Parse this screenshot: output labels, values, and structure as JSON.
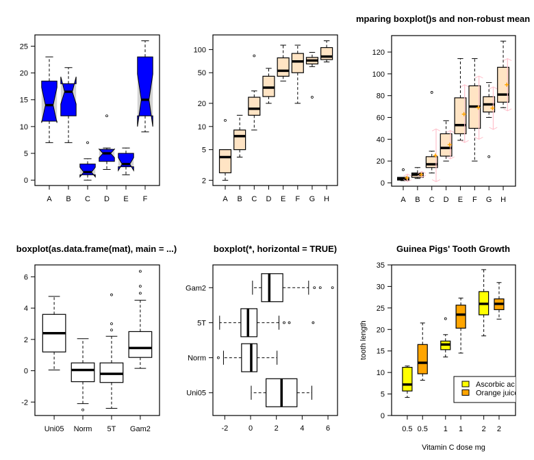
{
  "chart_data": [
    {
      "type": "box",
      "title": "",
      "orientation": "vertical",
      "notch": true,
      "fill": "#0000ff",
      "notch_bg": "#d3d3d3",
      "categories": [
        "A",
        "B",
        "C",
        "D",
        "E",
        "F"
      ],
      "ylim": [
        -1,
        27.1
      ],
      "log": false,
      "yticks": [
        0,
        5,
        10,
        15,
        20,
        25
      ],
      "boxes": [
        {
          "min": 7,
          "q1": 11,
          "med": 14,
          "q3": 18.5,
          "max": 23,
          "notch": [
            10.7,
            17.3
          ],
          "out": []
        },
        {
          "min": 7,
          "q1": 12,
          "med": 16.5,
          "q3": 18,
          "max": 21,
          "notch": [
            14.2,
            19.3
          ],
          "out": []
        },
        {
          "min": 0,
          "q1": 1,
          "med": 1.5,
          "q3": 3,
          "max": 4,
          "notch": [
            0.6,
            2.4
          ],
          "out": [
            7
          ]
        },
        {
          "min": 2,
          "q1": 3.5,
          "med": 5,
          "q3": 5.75,
          "max": 6,
          "notch": [
            4.2,
            5.8
          ],
          "out": [
            12
          ]
        },
        {
          "min": 1,
          "q1": 2.5,
          "med": 3,
          "q3": 5,
          "max": 6,
          "notch": [
            1.8,
            4.2
          ],
          "out": []
        },
        {
          "min": 9,
          "q1": 12,
          "med": 15,
          "q3": 23,
          "max": 26,
          "notch": [
            10,
            19.8
          ],
          "out": []
        }
      ]
    },
    {
      "type": "box",
      "title": "",
      "orientation": "vertical",
      "fill": "#ffe4c4",
      "categories": [
        "A",
        "B",
        "C",
        "D",
        "E",
        "F",
        "G",
        "H"
      ],
      "ylim": [
        1.71,
        155
      ],
      "log": true,
      "yticks": [
        2,
        5,
        10,
        20,
        50,
        100
      ],
      "boxes": [
        {
          "min": 2,
          "q1": 2.5,
          "med": 4,
          "q3": 5,
          "max": 5,
          "out": [
            12
          ]
        },
        {
          "min": 4,
          "q1": 5,
          "med": 7.5,
          "q3": 9,
          "max": 14,
          "out": []
        },
        {
          "min": 9,
          "q1": 14,
          "med": 17,
          "q3": 24,
          "max": 29,
          "out": [
            83
          ]
        },
        {
          "min": 20,
          "q1": 24.5,
          "med": 32,
          "q3": 45,
          "max": 57,
          "out": []
        },
        {
          "min": 39,
          "q1": 45,
          "med": 53,
          "q3": 78,
          "max": 114,
          "out": []
        },
        {
          "min": 20,
          "q1": 50,
          "med": 70,
          "q3": 89,
          "max": 114,
          "out": []
        },
        {
          "min": 60,
          "q1": 65,
          "med": 72,
          "q3": 79,
          "max": 92,
          "out": [
            24
          ]
        },
        {
          "min": 69,
          "q1": 74,
          "med": 81,
          "q3": 106,
          "max": 130,
          "out": []
        }
      ]
    },
    {
      "type": "box",
      "title": "mparing boxplot()s and non-robust mean",
      "orientation": "vertical",
      "fill": "#ffe4c4",
      "mean_color": "#ffa500",
      "sd_color": "#ffc0cb",
      "categories": [
        "A",
        "B",
        "C",
        "D",
        "E",
        "F",
        "G",
        "H"
      ],
      "ylim": [
        -3.1,
        135.1
      ],
      "log": false,
      "yticks": [
        0,
        20,
        40,
        60,
        80,
        100,
        120
      ],
      "boxes": [
        {
          "min": 2,
          "q1": 2.5,
          "med": 4,
          "q3": 5,
          "max": 5,
          "out": [
            12
          ],
          "mean": 4.5,
          "sd": [
            1,
            8
          ]
        },
        {
          "min": 4,
          "q1": 5,
          "med": 7.5,
          "q3": 9,
          "max": 14,
          "out": [],
          "mean": 7.5,
          "sd": [
            5,
            10.5
          ]
        },
        {
          "min": 9,
          "q1": 14,
          "med": 17,
          "q3": 24,
          "max": 29,
          "out": [
            83
          ],
          "mean": 25,
          "sd": [
            1,
            49.5
          ]
        },
        {
          "min": 20,
          "q1": 24.5,
          "med": 32,
          "q3": 45,
          "max": 57,
          "out": [],
          "mean": 35,
          "sd": [
            22,
            48
          ]
        },
        {
          "min": 39,
          "q1": 45,
          "med": 53,
          "q3": 78,
          "max": 114,
          "out": [],
          "mean": 63,
          "sd": [
            37,
            90
          ]
        },
        {
          "min": 20,
          "q1": 50,
          "med": 70,
          "q3": 89,
          "max": 114,
          "out": [],
          "mean": 69,
          "sd": [
            40,
            98
          ]
        },
        {
          "min": 60,
          "q1": 65,
          "med": 72,
          "q3": 79,
          "max": 92,
          "out": [
            24
          ],
          "mean": 68.5,
          "sd": [
            49,
            88
          ]
        },
        {
          "min": 69,
          "q1": 74,
          "med": 81,
          "q3": 106,
          "max": 130,
          "out": [],
          "mean": 90,
          "sd": [
            66,
            114
          ]
        }
      ]
    },
    {
      "type": "box",
      "title": "boxplot(as.data.frame(mat), main = ...)",
      "orientation": "vertical",
      "fill": "#ffffff",
      "categories": [
        "Uni05",
        "Norm",
        "5T",
        "Gam2"
      ],
      "ylim": [
        -2.86,
        6.76
      ],
      "log": false,
      "yticks": [
        -2,
        0,
        2,
        4,
        6
      ],
      "boxes": [
        {
          "min": 0.05,
          "q1": 1.2,
          "med": 2.4,
          "q3": 3.6,
          "max": 4.75,
          "out": []
        },
        {
          "min": -2.1,
          "q1": -0.7,
          "med": 0.05,
          "q3": 0.5,
          "max": 2.05,
          "out": [
            -2.5
          ]
        },
        {
          "min": -2.4,
          "q1": -0.75,
          "med": -0.2,
          "q3": 0.5,
          "max": 2.2,
          "out": [
            2.6,
            3.0,
            4.85
          ]
        },
        {
          "min": 0.15,
          "q1": 0.85,
          "med": 1.45,
          "q3": 2.5,
          "max": 4.5,
          "out": [
            4.95,
            5.4,
            6.35
          ]
        }
      ]
    },
    {
      "type": "box",
      "title": "boxplot(*, horizontal = TRUE)",
      "orientation": "horizontal",
      "fill": "#ffffff",
      "categories": [
        "Uni05",
        "Norm",
        "5T",
        "Gam2"
      ],
      "xlim": [
        -2.92,
        6.74
      ],
      "log": false,
      "xticks": [
        -2,
        0,
        2,
        4,
        6
      ],
      "boxes": [
        {
          "min": 0.05,
          "q1": 1.2,
          "med": 2.4,
          "q3": 3.6,
          "max": 4.75,
          "out": []
        },
        {
          "min": -2.1,
          "q1": -0.7,
          "med": 0.05,
          "q3": 0.5,
          "max": 2.05,
          "out": [
            -2.5
          ]
        },
        {
          "min": -2.4,
          "q1": -0.75,
          "med": -0.2,
          "q3": 0.5,
          "max": 2.2,
          "out": [
            2.6,
            3.0,
            4.85
          ]
        },
        {
          "min": 0.15,
          "q1": 0.85,
          "med": 1.45,
          "q3": 2.5,
          "max": 4.5,
          "out": [
            4.95,
            5.4,
            6.35
          ]
        }
      ]
    },
    {
      "type": "box",
      "title": "Guinea Pigs' Tooth Growth",
      "orientation": "vertical",
      "xlabel": "Vitamin C dose mg",
      "ylabel": "tooth length",
      "categories": [
        "0.5",
        "0.5",
        "1",
        "1",
        "2",
        "2"
      ],
      "ylim": [
        0,
        35
      ],
      "log": false,
      "yticks": [
        0,
        5,
        10,
        15,
        20,
        25,
        30,
        35
      ],
      "fills": [
        "#ffff00",
        "#ffa500",
        "#ffff00",
        "#ffa500",
        "#ffff00",
        "#ffa500"
      ],
      "legend": {
        "position": "bottom-right",
        "entries": [
          {
            "label": "Ascorbic ac",
            "color": "#ffff00"
          },
          {
            "label": "Orange juice",
            "color": "#ffa500"
          }
        ]
      },
      "boxes": [
        {
          "min": 4.2,
          "q1": 5.7,
          "med": 7.2,
          "q3": 11.2,
          "max": 11.5,
          "out": []
        },
        {
          "min": 8.2,
          "q1": 9.7,
          "med": 12.25,
          "q3": 16.5,
          "max": 21.5,
          "out": []
        },
        {
          "min": 13.6,
          "q1": 15.3,
          "med": 16.5,
          "q3": 17.3,
          "max": 18.8,
          "out": [
            22.5
          ]
        },
        {
          "min": 14.5,
          "q1": 20.3,
          "med": 23.45,
          "q3": 25.65,
          "max": 27.3,
          "out": []
        },
        {
          "min": 18.5,
          "q1": 23.4,
          "med": 25.95,
          "q3": 28.8,
          "max": 33.9,
          "out": []
        },
        {
          "min": 22.4,
          "q1": 24.6,
          "med": 25.95,
          "q3": 27.1,
          "max": 30.9,
          "out": []
        }
      ]
    }
  ]
}
